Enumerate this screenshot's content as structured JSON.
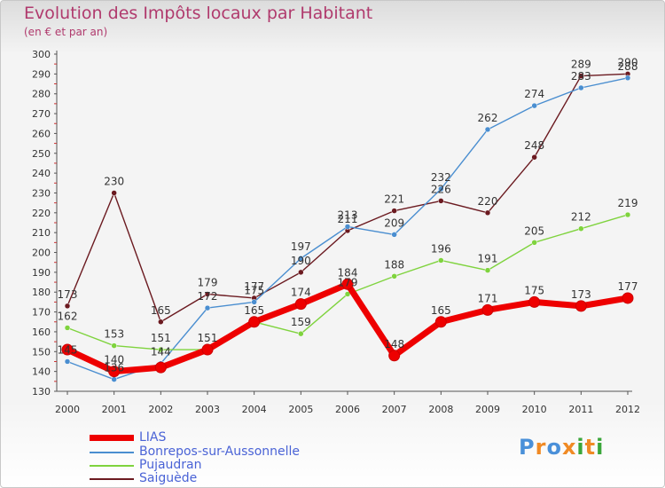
{
  "header": {
    "title": "Evolution des Impôts locaux par Habitant",
    "subtitle": "(en € et par an)"
  },
  "logo": {
    "text": "Proxiti",
    "colors": [
      "#4a90d9",
      "#f08a24",
      "#4a90d9",
      "#f08a24",
      "#3aa63a",
      "#f08a24",
      "#3aa63a"
    ]
  },
  "chart_data": {
    "type": "line",
    "x": [
      "2000",
      "2001",
      "2002",
      "2003",
      "2004",
      "2005",
      "2006",
      "2007",
      "2008",
      "2009",
      "2010",
      "2011",
      "2012"
    ],
    "ylim": [
      130,
      300
    ],
    "yticks": [
      130,
      140,
      150,
      160,
      170,
      180,
      190,
      200,
      210,
      220,
      230,
      240,
      250,
      260,
      270,
      280,
      290,
      300
    ],
    "grid": false,
    "legend_position": "bottom-left",
    "series": [
      {
        "name": "LIAS",
        "color": "#ee0000",
        "values": [
          151,
          140,
          142,
          151,
          165,
          174,
          184,
          148,
          165,
          171,
          175,
          173,
          177
        ],
        "labels": [
          "",
          "140",
          "",
          "",
          "",
          "174",
          "184",
          "148",
          "165",
          "171",
          "175",
          "173",
          "177"
        ]
      },
      {
        "name": "Bonrepos-sur-Aussonnelle",
        "color": "#4a8ed0",
        "values": [
          145,
          136,
          144,
          172,
          175,
          197,
          213,
          209,
          232,
          262,
          274,
          283,
          288
        ],
        "labels": [
          "145",
          "136",
          "144",
          "172",
          "175",
          "197",
          "213",
          "209",
          "232",
          "262",
          "274",
          "283",
          "288"
        ]
      },
      {
        "name": "Pujaudran",
        "color": "#7fd33e",
        "values": [
          162,
          153,
          151,
          151,
          165,
          159,
          179,
          188,
          196,
          191,
          205,
          212,
          219
        ],
        "labels": [
          "162",
          "153",
          "151",
          "151",
          "165",
          "159",
          "179",
          "188",
          "196",
          "191",
          "205",
          "212",
          "219"
        ]
      },
      {
        "name": "Saiguède",
        "color": "#6b1a20",
        "values": [
          173,
          230,
          165,
          179,
          177,
          190,
          211,
          221,
          226,
          220,
          248,
          289,
          290
        ],
        "labels": [
          "173",
          "230",
          "165",
          "179",
          "177",
          "190",
          "211",
          "221",
          "226",
          "220",
          "248",
          "289",
          "290"
        ]
      }
    ]
  }
}
